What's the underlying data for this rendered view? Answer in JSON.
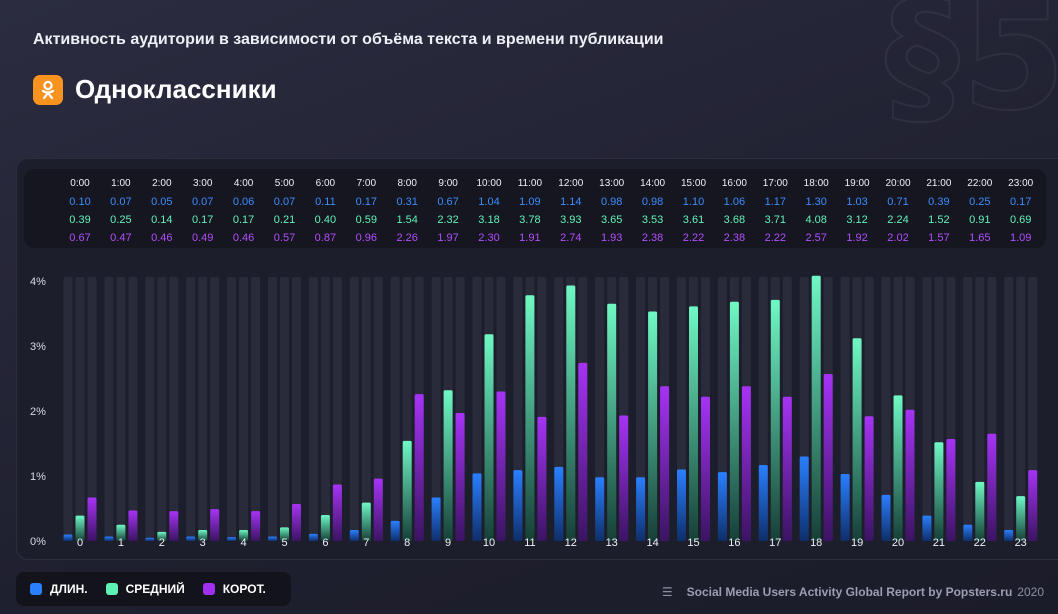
{
  "header": {
    "subtitle": "Активность аудитории в зависимости от объёма текста и времени публикации",
    "network": "Одноклассники",
    "watermark": "§5"
  },
  "colors": {
    "long": "#1f6fe0",
    "mid": "#5ff0b4",
    "short": "#a12ff0",
    "brand": "#f7931e"
  },
  "legend": [
    {
      "label": "ДЛИН.",
      "color": "#2a7fff"
    },
    {
      "label": "СРЕДНИЙ",
      "color": "#5ff0b4"
    },
    {
      "label": "КОРОТ.",
      "color": "#a12ff0"
    }
  ],
  "footer": {
    "source": "Social Media Users Activity Global Report by Popsters.ru",
    "year": "2020"
  },
  "chart_data": {
    "type": "bar",
    "title": "",
    "xlabel": "",
    "ylabel": "",
    "ylim": [
      0,
      4
    ],
    "y_ticks": [
      "0%",
      "1%",
      "2%",
      "3%",
      "4%"
    ],
    "grid": false,
    "legend_position": "bottom-left",
    "table_times": [
      "0:00",
      "1:00",
      "2:00",
      "3:00",
      "4:00",
      "5:00",
      "6:00",
      "7:00",
      "8:00",
      "9:00",
      "10:00",
      "11:00",
      "12:00",
      "13:00",
      "14:00",
      "15:00",
      "16:00",
      "17:00",
      "18:00",
      "19:00",
      "20:00",
      "21:00",
      "22:00",
      "23:00"
    ],
    "categories": [
      "0",
      "1",
      "2",
      "3",
      "4",
      "5",
      "6",
      "7",
      "8",
      "9",
      "10",
      "11",
      "12",
      "13",
      "14",
      "15",
      "16",
      "17",
      "18",
      "19",
      "20",
      "21",
      "22",
      "23"
    ],
    "series": [
      {
        "name": "ДЛИН.",
        "key": "long",
        "labels": [
          "0.10",
          "0.07",
          "0.05",
          "0.07",
          "0.06",
          "0.07",
          "0.11",
          "0.17",
          "0.31",
          "0.67",
          "1.04",
          "1.09",
          "1.14",
          "0.98",
          "0.98",
          "1.10",
          "1.06",
          "1.17",
          "1.30",
          "1.03",
          "0.71",
          "0.39",
          "0.25",
          "0.17"
        ],
        "values": [
          0.1,
          0.07,
          0.05,
          0.07,
          0.06,
          0.07,
          0.11,
          0.17,
          0.31,
          0.67,
          1.04,
          1.09,
          1.14,
          0.98,
          0.98,
          1.1,
          1.06,
          1.17,
          1.3,
          1.03,
          0.71,
          0.39,
          0.25,
          0.17
        ]
      },
      {
        "name": "СРЕДНИЙ",
        "key": "mid",
        "labels": [
          "0.39",
          "0.25",
          "0.14",
          "0.17",
          "0.17",
          "0.21",
          "0.40",
          "0.59",
          "1.54",
          "2.32",
          "3.18",
          "3.78",
          "3.93",
          "3.65",
          "3.53",
          "3.61",
          "3.68",
          "3.71",
          "4.08",
          "3.12",
          "2.24",
          "1.52",
          "0.91",
          "0.69"
        ],
        "values": [
          0.39,
          0.25,
          0.14,
          0.17,
          0.17,
          0.21,
          0.4,
          0.59,
          1.54,
          2.32,
          3.18,
          3.78,
          3.93,
          3.65,
          3.53,
          3.61,
          3.68,
          3.71,
          4.08,
          3.12,
          2.24,
          1.52,
          0.91,
          0.69
        ]
      },
      {
        "name": "КОРОТ.",
        "key": "short",
        "labels": [
          "0.67",
          "0.47",
          "0.46",
          "0.49",
          "0.46",
          "0.57",
          "0.87",
          "0.96",
          "2.26",
          "1.97",
          "2.30",
          "1.91",
          "2.74",
          "1.93",
          "2.38",
          "2.22",
          "2.38",
          "2.22",
          "2.57",
          "1.92",
          "2.02",
          "1.57",
          "1.65",
          "1.09"
        ],
        "values": [
          0.67,
          0.47,
          0.46,
          0.49,
          0.46,
          0.57,
          0.87,
          0.96,
          2.26,
          1.97,
          2.3,
          1.91,
          2.74,
          1.93,
          2.38,
          2.22,
          2.38,
          2.22,
          2.57,
          1.92,
          2.02,
          1.57,
          1.65,
          1.09
        ]
      }
    ]
  }
}
